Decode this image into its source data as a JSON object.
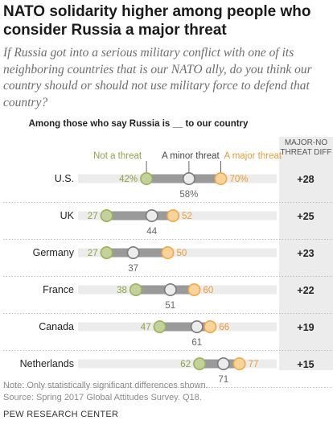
{
  "title": "NATO solidarity higher among people who consider Russia a major threat",
  "subtitle": "If Russia got into a serious military conflict with one of its neighboring countries that is our NATO ally, do you think our country should or should not use military force to defend that country?",
  "chart_header": "Among those who say Russia is __ to our country",
  "diff_header": "MAJOR-NO THREAT DIFF",
  "note": "Note: Only statistically significant differences shown.",
  "source": "Source: Spring 2017 Global Attitudes Survey. Q18.",
  "organization": "PEW RESEARCH CENTER",
  "chart_data": {
    "type": "dot",
    "categories": [
      "U.S.",
      "UK",
      "Germany",
      "France",
      "Canada",
      "Netherlands"
    ],
    "series": [
      {
        "name": "Not a threat",
        "color": "#9bb15a",
        "fill": "#c3d29a",
        "values": [
          42,
          27,
          27,
          38,
          47,
          62
        ]
      },
      {
        "name": "A minor threat",
        "color": "#7a7a7a",
        "fill": "#ececec",
        "values": [
          58,
          44,
          37,
          51,
          61,
          71
        ]
      },
      {
        "name": "A major threat",
        "color": "#efa94a",
        "fill": "#f8d49b",
        "values": [
          70,
          52,
          50,
          60,
          66,
          77
        ]
      }
    ],
    "diff": [
      "+28",
      "+25",
      "+23",
      "+22",
      "+19",
      "+15"
    ],
    "first_row_percent_suffix": true,
    "xlim": [
      0,
      100
    ]
  }
}
